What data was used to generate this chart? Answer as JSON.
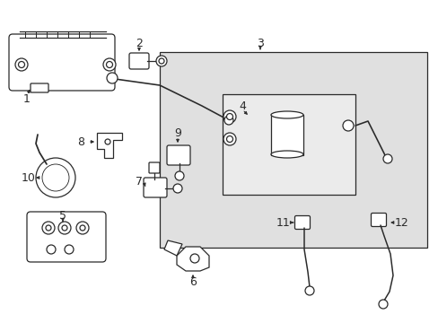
{
  "bg_color": "#ffffff",
  "line_color": "#2a2a2a",
  "box3_color": "#e0e0e0",
  "box4_color": "#ebebeb",
  "font_size": 9,
  "arrow_lw": 0.7,
  "part_lw": 0.9
}
